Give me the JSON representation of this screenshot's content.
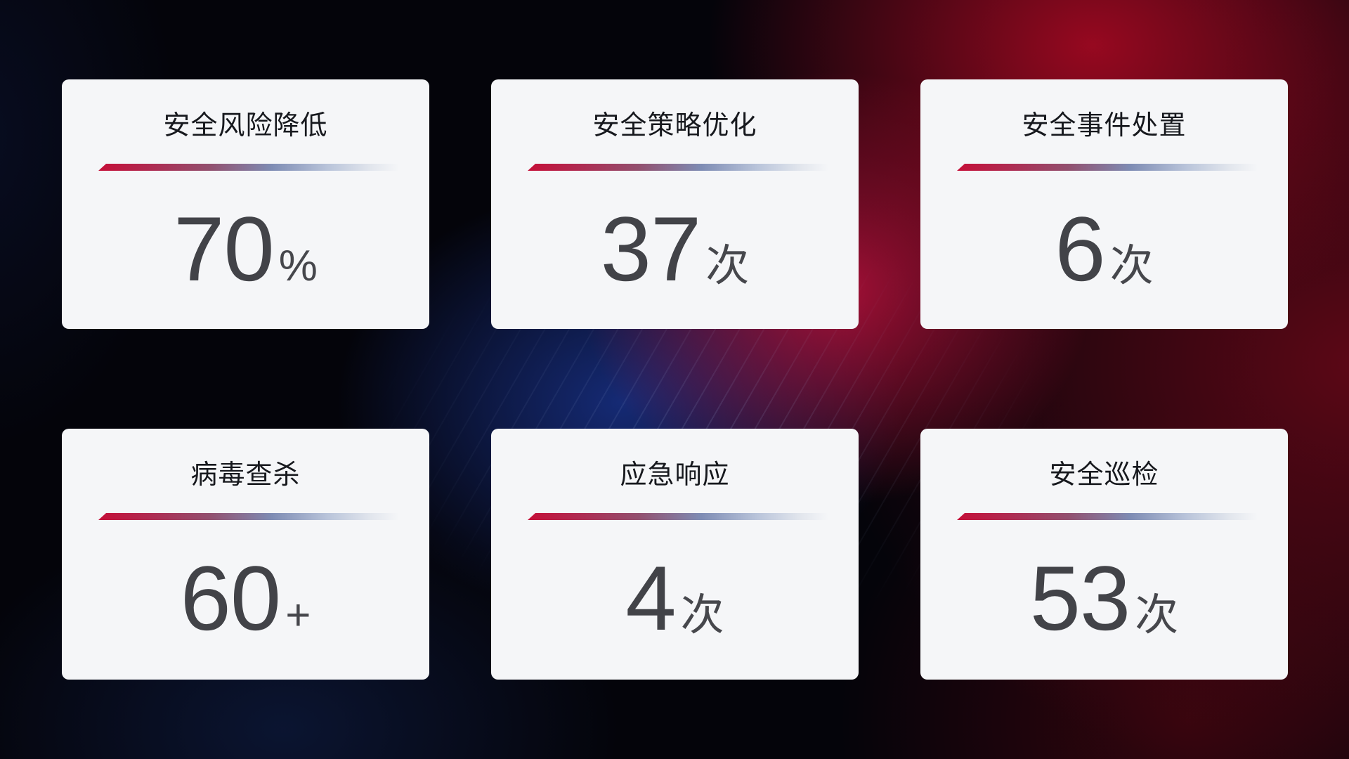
{
  "page": {
    "background_base": "#04040a",
    "glow_red": "#9e0921",
    "glow_crimson": "#c0123e",
    "glow_blue": "#162c7a",
    "card_background": "#f5f6f8",
    "title_color": "#17191e",
    "value_color": "#424348",
    "divider_gradient_start": "#c50f38",
    "divider_gradient_mid": "#7e8cb4",
    "divider_gradient_end": "#e2e6ed"
  },
  "cards": [
    {
      "title": "安全风险降低",
      "value": "70",
      "unit": "%"
    },
    {
      "title": "安全策略优化",
      "value": "37",
      "unit": "次"
    },
    {
      "title": "安全事件处置",
      "value": "6",
      "unit": "次"
    },
    {
      "title": "病毒查杀",
      "value": "60",
      "unit": "+"
    },
    {
      "title": "应急响应",
      "value": "4",
      "unit": "次"
    },
    {
      "title": "安全巡检",
      "value": "53",
      "unit": "次"
    }
  ]
}
